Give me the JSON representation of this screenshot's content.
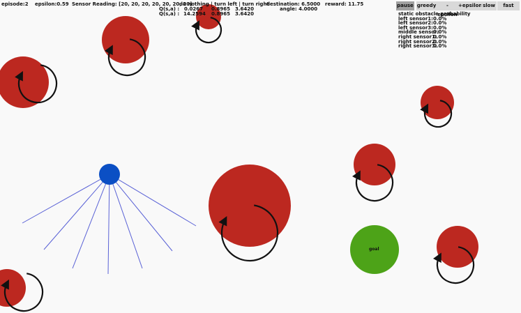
{
  "hud": {
    "episode": "episode:2",
    "epsilon": "epsilon:0.59",
    "sensor_reading": "Sensor Reading: [20, 20, 20, 20, 20, 20, 20]",
    "actions_header": "do nothing  |  turn left  |  turn right",
    "q_label_1": "Q(s,a) :",
    "q_label_2": "Q(s,a) :",
    "q_row_1": [
      "0.0267",
      "0.8965",
      "3.6420"
    ],
    "q_row_2": [
      "14.2594",
      "0.8965",
      "3.6420"
    ],
    "destination": "destination: 6.5000",
    "angle": "angle: 4.0000",
    "reward": "reward:  11.75"
  },
  "controls": {
    "pause": "pause",
    "greedy": "greedy",
    "minus_epsilon": "-epsilon",
    "plus_epsilon": "+epsilon",
    "slow": "slow",
    "fast": "fast",
    "active": "pause"
  },
  "obstacle_panel": {
    "title": "static obstacle probability",
    "rows": [
      {
        "label": "left sensor1:",
        "value": "0.0%"
      },
      {
        "label": "left sensor2:",
        "value": "0.0%"
      },
      {
        "label": "left sensor3:",
        "value": "0.0%"
      },
      {
        "label": "middle sensor:",
        "value": "0.0%"
      },
      {
        "label": "right sensor1:",
        "value": "0.0%"
      },
      {
        "label": "right sensor2:",
        "value": "0.0%"
      },
      {
        "label": "right sensor3:",
        "value": "0.0%"
      }
    ]
  },
  "goal": {
    "label": "goal",
    "color": "#4da318"
  },
  "colors": {
    "obstacle": "#bc2820",
    "agent": "#0b4fc4",
    "sensor_ray": "#5a62d6",
    "rotation_arrow": "#111111",
    "background": "#f9f9f9",
    "button": "#d9d9d9",
    "button_active": "#a0a0a0"
  },
  "icons": {
    "obstacle_rotation": "circular-arrow-icon"
  }
}
